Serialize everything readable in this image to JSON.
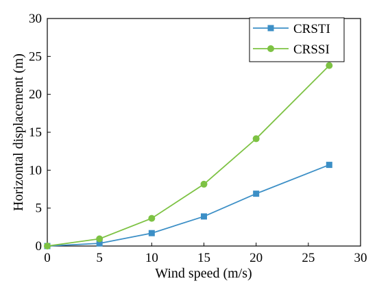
{
  "chart_data": {
    "type": "line",
    "title": "",
    "xlabel": "Wind speed (m/s)",
    "ylabel": "Horizontal displacement (m)",
    "xlim": [
      0,
      30
    ],
    "ylim": [
      0,
      30
    ],
    "xticks": [
      "0",
      "5",
      "10",
      "15",
      "20",
      "25",
      "30"
    ],
    "yticks": [
      "0",
      "5",
      "10",
      "15",
      "20",
      "25",
      "30"
    ],
    "grid": false,
    "legend_position": "top-right",
    "x": [
      0,
      5,
      10,
      15,
      20,
      27
    ],
    "series": [
      {
        "name": "CRSTI",
        "color": "#3c8fc6",
        "marker": "square",
        "values": [
          0,
          0.35,
          1.7,
          3.9,
          6.9,
          10.7
        ]
      },
      {
        "name": "CRSSI",
        "color": "#7dc243",
        "marker": "circle",
        "values": [
          0,
          0.95,
          3.65,
          8.15,
          14.15,
          23.8
        ]
      }
    ]
  }
}
